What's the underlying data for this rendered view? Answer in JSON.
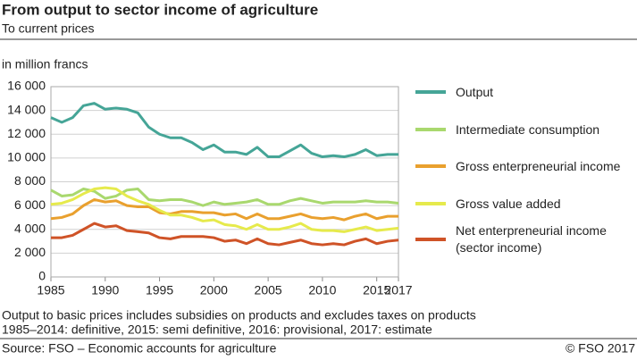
{
  "chart_data": {
    "type": "line",
    "title": "From output to sector income of agriculture",
    "subtitle": "To current prices",
    "y_axis_label": "in million francs",
    "notes": [
      "Output to basic prices includes subsidies on products and excludes taxes on products",
      "1985–2014: definitive, 2015: semi definitive, 2016: provisional, 2017: estimate"
    ],
    "source": "Source: FSO – Economic accounts for agriculture",
    "copyright": "© FSO  2017",
    "x": [
      1985,
      1986,
      1987,
      1988,
      1989,
      1990,
      1991,
      1992,
      1993,
      1994,
      1995,
      1996,
      1997,
      1998,
      1999,
      2000,
      2001,
      2002,
      2003,
      2004,
      2005,
      2006,
      2007,
      2008,
      2009,
      2010,
      2011,
      2012,
      2013,
      2014,
      2015,
      2016,
      2017
    ],
    "xlim": [
      1985,
      2017
    ],
    "xticks": [
      1985,
      1990,
      1995,
      2000,
      2005,
      2010,
      2015,
      2017
    ],
    "ylim": [
      0,
      16000
    ],
    "yticks": [
      0,
      {
        "value": 2000,
        "label": "2 000"
      },
      {
        "value": 4000,
        "label": "4 000"
      },
      {
        "value": 6000,
        "label": "6 000"
      },
      {
        "value": 8000,
        "label": "8 000"
      },
      {
        "value": 10000,
        "label": "10 000"
      },
      {
        "value": 12000,
        "label": "12 000"
      },
      {
        "value": 14000,
        "label": "14 000"
      },
      {
        "value": 16000,
        "label": "16 000"
      }
    ],
    "grid": true,
    "legend": "right",
    "series": [
      {
        "name": "Output",
        "color": "#45a597",
        "values": [
          13400,
          13000,
          13400,
          14400,
          14600,
          14100,
          14200,
          14100,
          13800,
          12600,
          12000,
          11700,
          11700,
          11300,
          10700,
          11100,
          10500,
          10500,
          10300,
          10900,
          10100,
          10100,
          10600,
          11100,
          10400,
          10100,
          10200,
          10100,
          10300,
          10700,
          10200,
          10300,
          10300
        ]
      },
      {
        "name": "Intermediate consumption",
        "color": "#a9d86e",
        "values": [
          7300,
          6800,
          6900,
          7400,
          7200,
          6600,
          6800,
          7300,
          7400,
          6500,
          6400,
          6500,
          6500,
          6300,
          6000,
          6300,
          6100,
          6200,
          6300,
          6500,
          6100,
          6100,
          6400,
          6600,
          6400,
          6200,
          6300,
          6300,
          6300,
          6400,
          6300,
          6300,
          6200
        ]
      },
      {
        "name": "Gross enterpreneurial income",
        "color": "#e9a02e",
        "values": [
          4900,
          5000,
          5300,
          6000,
          6500,
          6300,
          6400,
          6000,
          5900,
          5900,
          5400,
          5300,
          5500,
          5500,
          5400,
          5400,
          5200,
          5300,
          4900,
          5300,
          4900,
          4900,
          5100,
          5300,
          5000,
          4900,
          5000,
          4800,
          5100,
          5300,
          4900,
          5100,
          5100
        ]
      },
      {
        "name": "Gross value added",
        "color": "#e6ea4c",
        "values": [
          6100,
          6200,
          6500,
          7000,
          7400,
          7500,
          7400,
          6800,
          6400,
          6100,
          5600,
          5200,
          5200,
          5000,
          4700,
          4800,
          4400,
          4300,
          4000,
          4400,
          4000,
          4000,
          4200,
          4500,
          4000,
          3900,
          3900,
          3800,
          4000,
          4200,
          3900,
          4000,
          4100
        ]
      },
      {
        "name": "Net enterpreneurial income (sector income)",
        "color": "#cf5327",
        "values": [
          3300,
          3300,
          3500,
          4000,
          4500,
          4200,
          4300,
          3900,
          3800,
          3700,
          3300,
          3200,
          3400,
          3400,
          3400,
          3300,
          3000,
          3100,
          2800,
          3200,
          2800,
          2700,
          2900,
          3100,
          2800,
          2700,
          2800,
          2700,
          3000,
          3200,
          2800,
          3000,
          3100
        ]
      }
    ]
  }
}
